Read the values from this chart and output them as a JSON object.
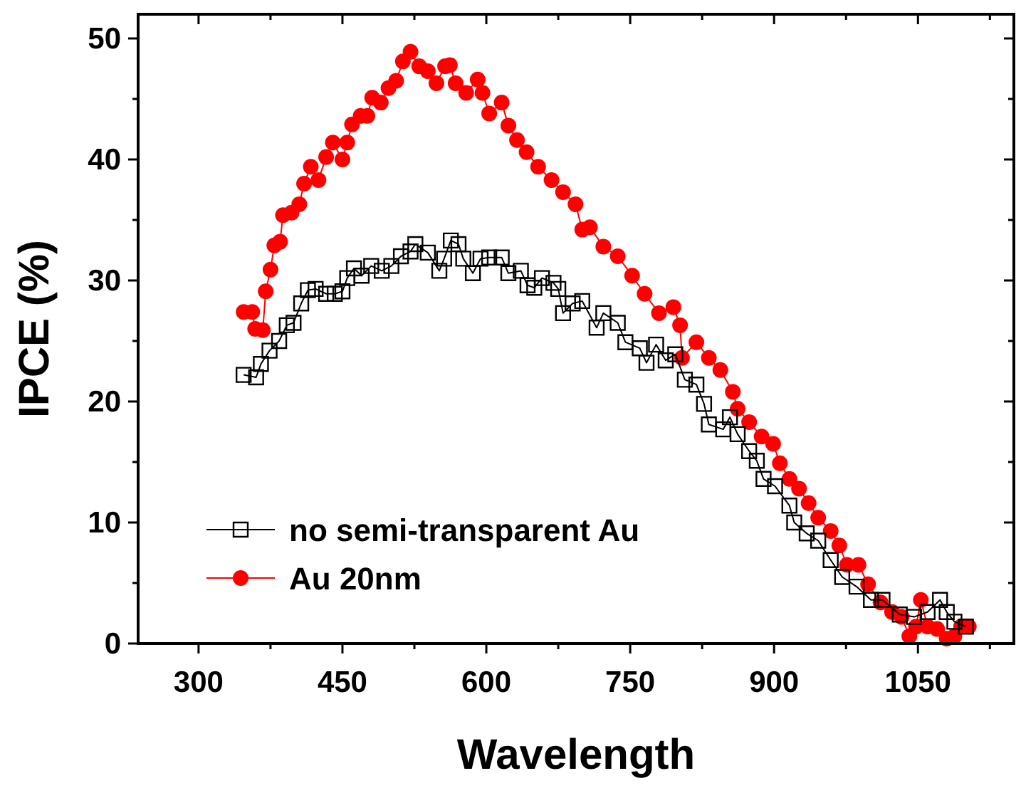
{
  "chart_data": {
    "type": "line",
    "xlabel": "Wavelength",
    "ylabel": "IPCE (%)",
    "xlim": [
      237,
      1150
    ],
    "ylim": [
      0,
      52
    ],
    "xticks": [
      300,
      {
        "value": 375,
        "label": null
      },
      450,
      {
        "value": 525,
        "label": null
      },
      600,
      {
        "value": 675,
        "label": null
      },
      750,
      {
        "value": 825,
        "label": null
      },
      900,
      {
        "value": 975,
        "label": null
      },
      1050,
      {
        "value": 1125,
        "label": null
      }
    ],
    "yticks": [
      0,
      {
        "value": 5,
        "label": null
      },
      10,
      {
        "value": 15,
        "label": null
      },
      20,
      {
        "value": 25,
        "label": null
      },
      30,
      {
        "value": 35,
        "label": null
      },
      40,
      {
        "value": 45,
        "label": null
      },
      50
    ],
    "grid": false,
    "legend": "bottom left",
    "line_style": "solid",
    "series": [
      {
        "name": "no semi-transparent Au",
        "color": "#000000",
        "marker": "square",
        "x": [
          347,
          360,
          365,
          374,
          384,
          392,
          399,
          407,
          414,
          422,
          433,
          442,
          450,
          455,
          462,
          470,
          480,
          491,
          501,
          511,
          521,
          526,
          539,
          551,
          556,
          563,
          571,
          576,
          586,
          594,
          603,
          616,
          623,
          636,
          643,
          650,
          658,
          670,
          675,
          680,
          690,
          700,
          715,
          722,
          737,
          745,
          760,
          767,
          777,
          787,
          797,
          807,
          819,
          827,
          832,
          847,
          854,
          862,
          874,
          882,
          889,
          901,
          916,
          921,
          934,
          946,
          959,
          971,
          986,
          1001,
          1013,
          1031,
          1046,
          1060,
          1073,
          1080,
          1088,
          1100
        ],
        "values": [
          22.2,
          22.0,
          23.1,
          24.2,
          25.0,
          26.3,
          26.5,
          28.1,
          29.2,
          29.3,
          28.9,
          28.9,
          29.1,
          30.2,
          31.0,
          30.4,
          31.2,
          30.8,
          31.2,
          32.0,
          32.4,
          33.0,
          32.3,
          30.8,
          31.8,
          33.3,
          33.0,
          31.8,
          30.6,
          31.8,
          31.9,
          31.9,
          30.6,
          30.8,
          29.6,
          29.4,
          30.2,
          29.8,
          29.3,
          27.3,
          28.1,
          28.3,
          26.1,
          27.3,
          26.5,
          24.9,
          24.4,
          23.2,
          24.7,
          23.4,
          23.9,
          21.8,
          21.4,
          19.8,
          18.1,
          17.7,
          18.7,
          17.3,
          15.9,
          15.1,
          13.6,
          13.0,
          11.4,
          10.0,
          9.1,
          8.5,
          6.9,
          5.5,
          4.7,
          3.6,
          3.6,
          2.4,
          2.2,
          2.6,
          3.6,
          2.6,
          1.8,
          1.4
        ]
      },
      {
        "name": "Au 20nm",
        "color": "#ff0000",
        "marker": "circle",
        "x": [
          347,
          356,
          359,
          367,
          370,
          375,
          379,
          385,
          388,
          397,
          405,
          410,
          417,
          425,
          433,
          440,
          450,
          455,
          460,
          469,
          476,
          481,
          490,
          498,
          506,
          513,
          521,
          530,
          539,
          548,
          557,
          562,
          568,
          579,
          591,
          596,
          603,
          616,
          623,
          632,
          642,
          654,
          668,
          680,
          693,
          700,
          708,
          722,
          737,
          752,
          765,
          780,
          795,
          802,
          804,
          819,
          832,
          844,
          857,
          862,
          874,
          887,
          899,
          906,
          916,
          926,
          936,
          946,
          959,
          968,
          976,
          988,
          998,
          1011,
          1023,
          1033,
          1041,
          1048,
          1053,
          1060,
          1070,
          1080,
          1088,
          1095,
          1103
        ],
        "values": [
          27.4,
          27.4,
          26.0,
          25.9,
          29.1,
          30.9,
          32.9,
          33.2,
          35.4,
          35.6,
          36.3,
          38.0,
          39.4,
          38.3,
          40.2,
          41.4,
          40.0,
          41.4,
          42.9,
          43.6,
          43.6,
          45.1,
          44.7,
          45.9,
          46.5,
          48.1,
          48.9,
          47.7,
          47.3,
          46.3,
          47.7,
          47.8,
          46.3,
          45.5,
          46.6,
          45.5,
          43.8,
          44.7,
          42.8,
          41.6,
          40.6,
          39.4,
          38.3,
          37.3,
          36.3,
          34.2,
          34.4,
          32.8,
          32.0,
          30.4,
          28.9,
          27.3,
          27.8,
          26.3,
          23.6,
          24.9,
          23.6,
          22.6,
          20.8,
          19.4,
          18.3,
          17.1,
          16.5,
          14.9,
          13.6,
          12.8,
          11.6,
          10.4,
          9.3,
          8.1,
          6.5,
          6.5,
          4.9,
          3.4,
          2.6,
          2.2,
          0.6,
          1.4,
          3.6,
          1.4,
          1.2,
          0.4,
          0.6,
          1.4,
          1.4
        ]
      }
    ]
  }
}
